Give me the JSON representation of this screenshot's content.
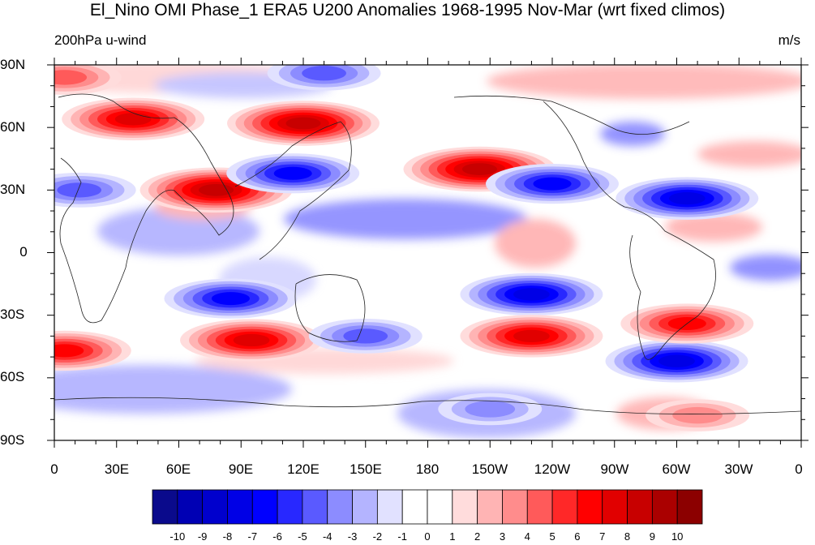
{
  "figure": {
    "title": "El_Nino OMI Phase_1 ERA5 U200 Anomalies 1968-1995 Nov-Mar (wrt fixed climos)",
    "left_string": "200hPa u-wind",
    "right_string": "m/s"
  },
  "axes": {
    "lat_labels": [
      "90N",
      "60N",
      "30N",
      "0",
      "30S",
      "60S",
      "90S"
    ],
    "lon_labels": [
      "0",
      "30E",
      "60E",
      "90E",
      "120E",
      "150E",
      "180",
      "150W",
      "120W",
      "90W",
      "60W",
      "30W",
      "0"
    ]
  },
  "colorbar": {
    "labels": [
      "-10",
      "-9",
      "-8",
      "-7",
      "-6",
      "-5",
      "-4",
      "-3",
      "-2",
      "-1",
      "0",
      "1",
      "2",
      "3",
      "4",
      "5",
      "6",
      "7",
      "8",
      "9",
      "10"
    ],
    "colors": [
      "#0a0a8c",
      "#0000b4",
      "#0000cd",
      "#0000e6",
      "#0000ff",
      "#2828ff",
      "#5a5aff",
      "#8c8cff",
      "#b4b4ff",
      "#e1e1ff",
      "#ffffff",
      "#ffffff",
      "#ffdcdc",
      "#ffb4b4",
      "#ff8c8c",
      "#ff5a5a",
      "#ff2828",
      "#ff0000",
      "#e10000",
      "#c80000",
      "#aa0000",
      "#8c0000"
    ]
  },
  "map": {
    "anomaly_centers": [
      {
        "lon": 120,
        "lat": 62,
        "value": 8
      },
      {
        "lon": 38,
        "lat": 64,
        "value": 7
      },
      {
        "lon": 78,
        "lat": 30,
        "value": 8
      },
      {
        "lon": 115,
        "lat": 38,
        "value": -6
      },
      {
        "lon": 205,
        "lat": 40,
        "value": 8
      },
      {
        "lon": 240,
        "lat": 33,
        "value": -6
      },
      {
        "lon": 305,
        "lat": 26,
        "value": -7
      },
      {
        "lon": 85,
        "lat": -22,
        "value": -6
      },
      {
        "lon": 95,
        "lat": -42,
        "value": 7
      },
      {
        "lon": 5,
        "lat": -47,
        "value": 6
      },
      {
        "lon": 230,
        "lat": -20,
        "value": -7
      },
      {
        "lon": 230,
        "lat": -40,
        "value": 7
      },
      {
        "lon": 300,
        "lat": -52,
        "value": -7
      },
      {
        "lon": 305,
        "lat": -34,
        "value": 6
      },
      {
        "lon": 12,
        "lat": 30,
        "value": -4
      },
      {
        "lon": 5,
        "lat": 84,
        "value": 4
      },
      {
        "lon": 130,
        "lat": 86,
        "value": -4
      },
      {
        "lon": 150,
        "lat": -40,
        "value": -4
      },
      {
        "lon": 310,
        "lat": -78,
        "value": 3
      },
      {
        "lon": 210,
        "lat": -75,
        "value": -3
      }
    ]
  }
}
